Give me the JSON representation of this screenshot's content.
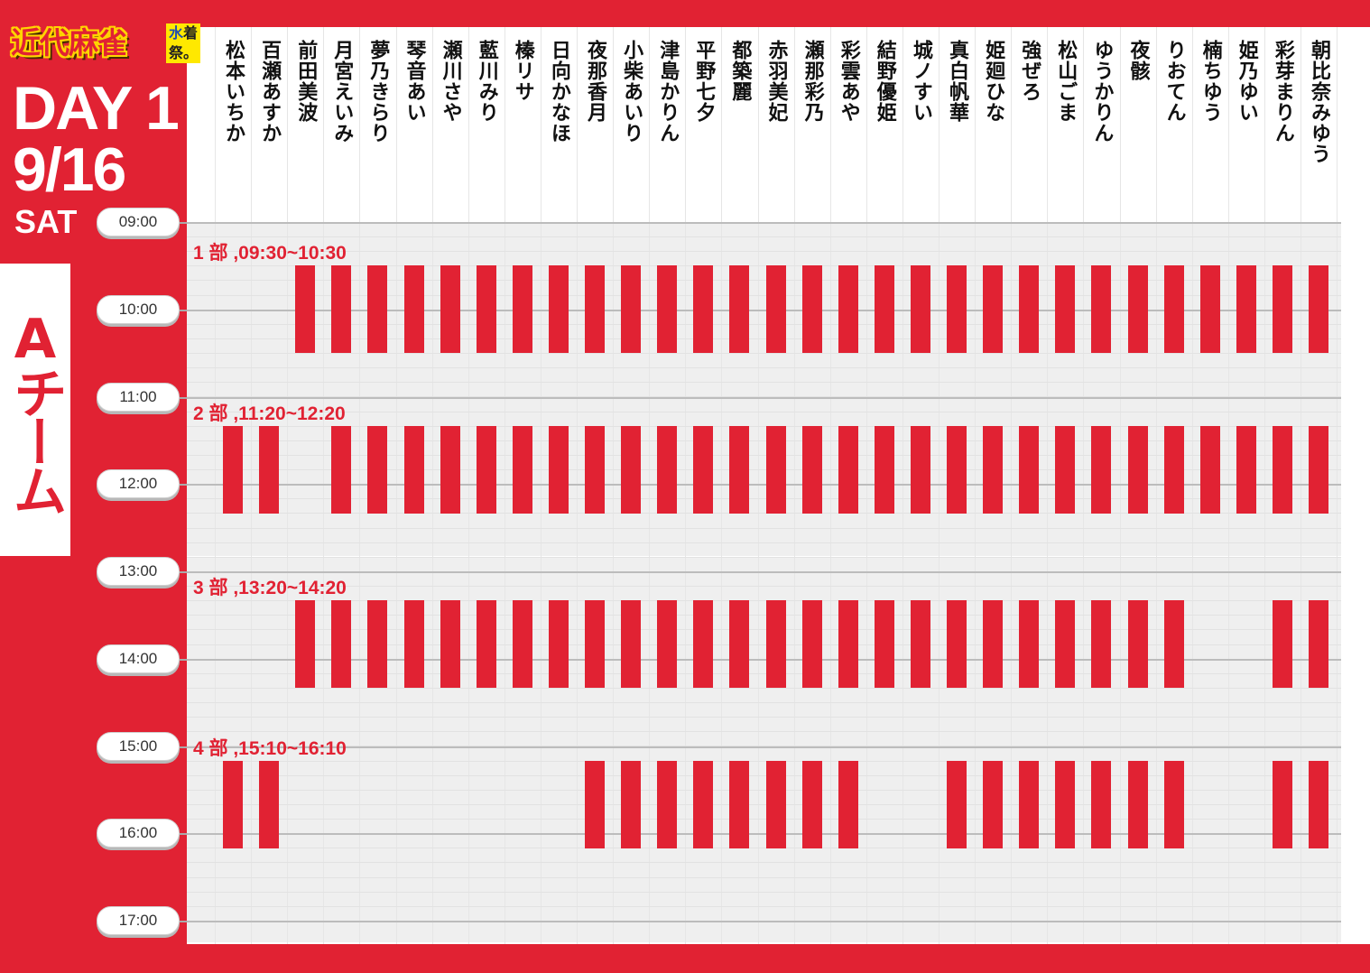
{
  "logo": {
    "main": "近代麻雀",
    "side_top": "水",
    "side_right": "着",
    "side_bottom": "祭",
    "side_dot": "。"
  },
  "day": {
    "line1": "DAY 1",
    "line2": "9/16",
    "line3": "SAT"
  },
  "team": {
    "label": "Aチーム"
  },
  "colors": {
    "accent": "#e12233",
    "band": "#efefef",
    "logo_yellow": "#ffe800"
  },
  "hours": [
    "09:00",
    "10:00",
    "11:00",
    "12:00",
    "13:00",
    "14:00",
    "15:00",
    "16:00",
    "17:00"
  ],
  "performers": [
    "松本いちか",
    "百瀬あすか",
    "前田美波",
    "月宮えいみ",
    "夢乃きらり",
    "琴音あい",
    "瀬川さや",
    "藍川みり",
    "榛リサ",
    "日向かなほ",
    "夜那香月",
    "小柴あいり",
    "津島かりん",
    "平野七夕",
    "都築麗",
    "赤羽美妃",
    "瀬那彩乃",
    "彩雲あや",
    "結野優姫",
    "城ノすい",
    "真白帆華",
    "姫廻ひな",
    "強ぜろ",
    "松山ごま",
    "ゆうかりん",
    "夜骸",
    "りおてん",
    "楠ちゆう",
    "姫乃ゆい",
    "彩芽まりん",
    "朝比奈みゆう"
  ],
  "sessions": [
    {
      "label": "1 部 ,09:30~10:30",
      "start_h": 9.5,
      "end_h": 10.5,
      "present": [
        2,
        3,
        4,
        5,
        6,
        7,
        8,
        9,
        10,
        11,
        12,
        13,
        14,
        15,
        16,
        17,
        18,
        19,
        20,
        21,
        22,
        23,
        24,
        25,
        26,
        27,
        28,
        29,
        30
      ]
    },
    {
      "label": "2 部 ,11:20~12:20",
      "start_h": 11.333,
      "end_h": 12.333,
      "present": [
        0,
        1,
        3,
        4,
        5,
        6,
        7,
        8,
        9,
        10,
        11,
        12,
        13,
        14,
        15,
        16,
        17,
        18,
        19,
        20,
        21,
        22,
        23,
        24,
        25,
        26,
        27,
        28,
        29,
        30
      ]
    },
    {
      "label": "3 部 ,13:20~14:20",
      "start_h": 13.333,
      "end_h": 14.333,
      "present": [
        2,
        3,
        4,
        5,
        6,
        7,
        8,
        9,
        10,
        11,
        12,
        13,
        14,
        15,
        16,
        17,
        18,
        19,
        20,
        21,
        22,
        23,
        24,
        25,
        26,
        29,
        30
      ]
    },
    {
      "label": "4 部 ,15:10~16:10",
      "start_h": 15.167,
      "end_h": 16.167,
      "present": [
        0,
        1,
        10,
        11,
        12,
        13,
        14,
        15,
        16,
        17,
        20,
        21,
        22,
        23,
        24,
        25,
        26,
        29,
        30
      ]
    }
  ]
}
